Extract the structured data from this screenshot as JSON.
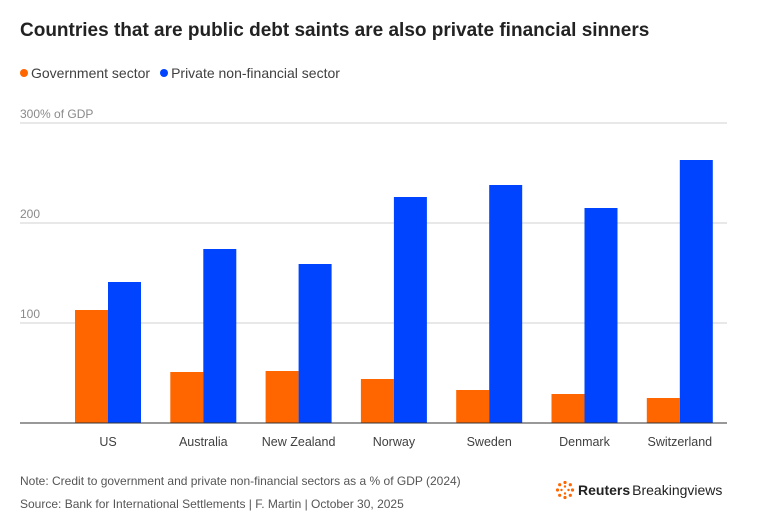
{
  "title": "Countries that are public debt saints are also private financial sinners",
  "legend": [
    {
      "label": "Government sector",
      "color": "#ff6600"
    },
    {
      "label": "Private non-financial sector",
      "color": "#0044ff"
    }
  ],
  "note": "Note: Credit to government and private non-financial sectors as a % of GDP (2024)",
  "source": "Source: Bank for International Settlements | F. Martin | October 30, 2025",
  "brand": {
    "name_bold": "Reuters",
    "name_regular": "Breakingviews",
    "logo_icon": "reuters-dots-logo"
  },
  "chart_data": {
    "type": "bar",
    "categories": [
      "US",
      "Australia",
      "New Zealand",
      "Norway",
      "Sweden",
      "Denmark",
      "Switzerland"
    ],
    "series": [
      {
        "name": "Government sector",
        "color": "#ff6600",
        "values": [
          113,
          51,
          52,
          44,
          33,
          29,
          25
        ]
      },
      {
        "name": "Private non-financial sector",
        "color": "#0044ff",
        "values": [
          141,
          174,
          159,
          226,
          238,
          215,
          263
        ]
      }
    ],
    "y_ticks": [
      {
        "value": 300,
        "label": "300% of GDP"
      },
      {
        "value": 200,
        "label": "200"
      },
      {
        "value": 100,
        "label": "100"
      }
    ],
    "ylim": [
      0,
      300
    ],
    "grid": true,
    "legend_position": "top-left"
  }
}
